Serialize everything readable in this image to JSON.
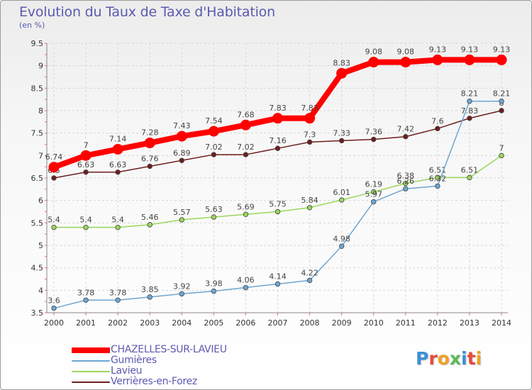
{
  "title": "Evolution du Taux de Taxe d'Habitation",
  "subtitle": "(en %)",
  "logo": "Proxiti",
  "chart_data": {
    "type": "line",
    "title": "Evolution du Taux de Taxe d'Habitation",
    "ylabel": "(en %)",
    "xlabel": "",
    "x": [
      "2000",
      "2001",
      "2002",
      "2003",
      "2004",
      "2005",
      "2006",
      "2007",
      "2008",
      "2009",
      "2010",
      "2011",
      "2012",
      "2013",
      "2014"
    ],
    "ylim": [
      3.5,
      9.5
    ],
    "yticks": [
      "3.5",
      "4",
      "4.5",
      "5",
      "5.5",
      "6",
      "6.5",
      "7",
      "7.5",
      "8",
      "8.5",
      "9",
      "9.5"
    ],
    "grid": true,
    "legend_position": "bottom-left",
    "series": [
      {
        "name": "Verrières-en-Forez",
        "color": "#6e1e1e",
        "values": [
          6.5,
          6.63,
          6.63,
          6.76,
          6.89,
          7.02,
          7.02,
          7.16,
          7.3,
          7.33,
          7.36,
          7.42,
          7.6,
          7.83,
          8
        ],
        "labels": [
          "6.5",
          "6.63",
          "6.63",
          "6.76",
          "6.89",
          "7.02",
          "7.02",
          "7.16",
          "7.3",
          "7.33",
          "7.36",
          "7.42",
          "7.6",
          "7.83",
          "8"
        ]
      },
      {
        "name": "Lavieu",
        "color": "#99d65c",
        "values": [
          5.4,
          5.4,
          5.4,
          5.46,
          5.57,
          5.63,
          5.69,
          5.75,
          5.84,
          6.01,
          6.19,
          6.38,
          6.51,
          6.51,
          7
        ],
        "labels": [
          "5.4",
          "5.4",
          "5.4",
          "5.46",
          "5.57",
          "5.63",
          "5.69",
          "5.75",
          "5.84",
          "6.01",
          "6.19",
          "6.38",
          "6.51",
          "6.51",
          "7"
        ]
      },
      {
        "name": "Gumières",
        "color": "#6ea6d2",
        "values": [
          3.6,
          3.78,
          3.78,
          3.85,
          3.92,
          3.98,
          4.06,
          4.14,
          4.22,
          4.98,
          5.97,
          6.26,
          6.32,
          8.21,
          8.21
        ],
        "labels": [
          "3.6",
          "3.78",
          "3.78",
          "3.85",
          "3.92",
          "3.98",
          "4.06",
          "4.14",
          "4.22",
          "4.98",
          "5.97",
          "6.26",
          "6.32",
          "8.21",
          "8.21"
        ]
      },
      {
        "name": "CHAZELLES-SUR-LAVIEU",
        "color": "#ff0000",
        "values": [
          6.74,
          7,
          7.14,
          7.28,
          7.43,
          7.54,
          7.68,
          7.83,
          7.83,
          8.83,
          9.08,
          9.08,
          9.13,
          9.13,
          9.13
        ],
        "labels": [
          "6.74",
          "7",
          "7.14",
          "7.28",
          "7.43",
          "7.54",
          "7.68",
          "7.83",
          "7.83",
          "8.83",
          "9.08",
          "9.08",
          "9.13",
          "9.13",
          "9.13"
        ]
      }
    ],
    "legend": [
      "CHAZELLES-SUR-LAVIEU",
      "Gumières",
      "Lavieu",
      "Verrières-en-Forez"
    ]
  }
}
